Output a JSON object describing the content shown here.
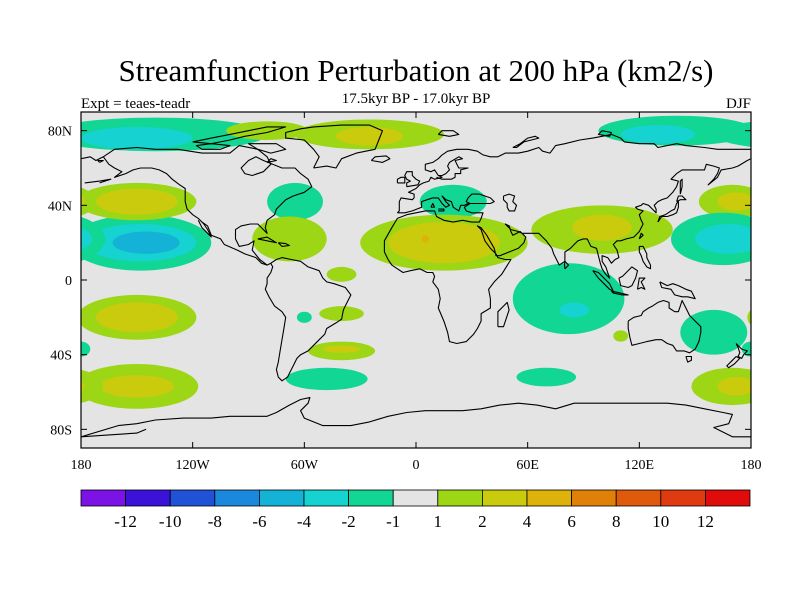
{
  "chart_data": {
    "type": "heatmap",
    "title": "Streamfunction Perturbation at 200 hPa (km2/s)",
    "subtitle": "17.5kyr BP - 17.0kyr BP",
    "left_label": "Expt = teaes-teadr",
    "right_label": "DJF",
    "projection": "cylindrical-equidistant",
    "xlim": [
      -180,
      180
    ],
    "ylim": [
      -90,
      90
    ],
    "x_ticks": [
      {
        "value": -180,
        "label": "180"
      },
      {
        "value": -120,
        "label": "120W"
      },
      {
        "value": -60,
        "label": "60W"
      },
      {
        "value": 0,
        "label": "0"
      },
      {
        "value": 60,
        "label": "60E"
      },
      {
        "value": 120,
        "label": "120E"
      },
      {
        "value": 180,
        "label": "180"
      }
    ],
    "y_ticks": [
      {
        "value": 80,
        "label": "80N"
      },
      {
        "value": 40,
        "label": "40N"
      },
      {
        "value": 0,
        "label": "0"
      },
      {
        "value": -40,
        "label": "40S"
      },
      {
        "value": -80,
        "label": "80S"
      }
    ],
    "colorbar": {
      "labels": [
        "-12",
        "-10",
        "-8",
        "-6",
        "-4",
        "-2",
        "-1",
        "1",
        "2",
        "4",
        "6",
        "8",
        "10",
        "12"
      ],
      "colors": [
        "#7b12e6",
        "#3b12d8",
        "#1f52d6",
        "#1a88dd",
        "#14b2d6",
        "#16d2d0",
        "#12d694",
        "#e4e4e4",
        "#9cd614",
        "#cbcb0e",
        "#ddb20a",
        "#e08008",
        "#e05a0c",
        "#e03a10",
        "#e00c0c"
      ]
    },
    "anomaly_regions": [
      {
        "lon": -150,
        "lat": -20,
        "rlon": 32,
        "rlat": 12,
        "level": 2
      },
      {
        "lon": -150,
        "lat": -20,
        "rlon": 22,
        "rlat": 8,
        "level": 4
      },
      {
        "lon": -150,
        "lat": -57,
        "rlon": 33,
        "rlat": 12,
        "level": 2
      },
      {
        "lon": -150,
        "lat": -57,
        "rlon": 20,
        "rlat": 6,
        "level": 4
      },
      {
        "lon": -180,
        "lat": -37,
        "rlon": 5,
        "rlat": 4,
        "level": -1
      },
      {
        "lon": -148,
        "lat": 20,
        "rlon": 38,
        "rlat": 15,
        "level": -1
      },
      {
        "lon": -148,
        "lat": 20,
        "rlon": 30,
        "rlat": 10,
        "level": -2
      },
      {
        "lon": -145,
        "lat": 20,
        "rlon": 18,
        "rlat": 6,
        "level": -4
      },
      {
        "lon": -150,
        "lat": 42,
        "rlon": 32,
        "rlat": 10,
        "level": 2
      },
      {
        "lon": -150,
        "lat": 42,
        "rlon": 22,
        "rlat": 7,
        "level": 4
      },
      {
        "lon": -140,
        "lat": 78,
        "rlon": 60,
        "rlat": 9,
        "level": -1
      },
      {
        "lon": -150,
        "lat": 76,
        "rlon": 30,
        "rlat": 6,
        "level": -2
      },
      {
        "lon": -65,
        "lat": 42,
        "rlon": 15,
        "rlat": 10,
        "level": -1
      },
      {
        "lon": -68,
        "lat": 22,
        "rlon": 20,
        "rlat": 12,
        "level": 2
      },
      {
        "lon": -25,
        "lat": 78,
        "rlon": 40,
        "rlat": 8,
        "level": 2
      },
      {
        "lon": -25,
        "lat": 77,
        "rlon": 18,
        "rlat": 5,
        "level": 4
      },
      {
        "lon": -80,
        "lat": 80,
        "rlon": 22,
        "rlat": 5,
        "level": 2
      },
      {
        "lon": 20,
        "lat": 42,
        "rlon": 18,
        "rlat": 9,
        "level": -1
      },
      {
        "lon": 15,
        "lat": 20,
        "rlon": 45,
        "rlat": 15,
        "level": 2
      },
      {
        "lon": 15,
        "lat": 20,
        "rlon": 30,
        "rlat": 11,
        "level": 4
      },
      {
        "lon": 5,
        "lat": 22,
        "rlon": 2,
        "rlat": 2,
        "level": 6
      },
      {
        "lon": 100,
        "lat": 27,
        "rlon": 38,
        "rlat": 13,
        "level": 2
      },
      {
        "lon": 100,
        "lat": 28,
        "rlon": 16,
        "rlat": 7,
        "level": 4
      },
      {
        "lon": 140,
        "lat": 80,
        "rlon": 42,
        "rlat": 8,
        "level": -1
      },
      {
        "lon": 130,
        "lat": 78,
        "rlon": 20,
        "rlat": 5,
        "level": -2
      },
      {
        "lon": 170,
        "lat": 42,
        "rlon": 18,
        "rlat": 9,
        "level": 2
      },
      {
        "lon": 172,
        "lat": 42,
        "rlon": 10,
        "rlat": 5,
        "level": 4
      },
      {
        "lon": 165,
        "lat": 22,
        "rlon": 28,
        "rlat": 14,
        "level": -1
      },
      {
        "lon": 168,
        "lat": 22,
        "rlon": 18,
        "rlat": 8,
        "level": -2
      },
      {
        "lon": 82,
        "lat": -10,
        "rlon": 30,
        "rlat": 19,
        "level": -1
      },
      {
        "lon": 85,
        "lat": -16,
        "rlon": 8,
        "rlat": 4,
        "level": -2
      },
      {
        "lon": 160,
        "lat": -28,
        "rlon": 18,
        "rlat": 12,
        "level": -1
      },
      {
        "lon": 170,
        "lat": -57,
        "rlon": 22,
        "rlat": 10,
        "level": 2
      },
      {
        "lon": 172,
        "lat": -57,
        "rlon": 10,
        "rlat": 5,
        "level": 4
      },
      {
        "lon": 110,
        "lat": -30,
        "rlon": 4,
        "rlat": 3,
        "level": 2
      },
      {
        "lon": 70,
        "lat": -52,
        "rlon": 16,
        "rlat": 5,
        "level": -1
      },
      {
        "lon": -40,
        "lat": -18,
        "rlon": 12,
        "rlat": 4,
        "level": 2
      },
      {
        "lon": -60,
        "lat": -20,
        "rlon": 4,
        "rlat": 3,
        "level": -1
      },
      {
        "lon": -40,
        "lat": -38,
        "rlon": 18,
        "rlat": 5,
        "level": 2
      },
      {
        "lon": -40,
        "lat": -37,
        "rlon": 10,
        "rlat": 2,
        "level": 4
      },
      {
        "lon": -48,
        "lat": -53,
        "rlon": 22,
        "rlat": 6,
        "level": -1
      },
      {
        "lon": -40,
        "lat": 3,
        "rlon": 8,
        "rlat": 4,
        "level": 2
      }
    ]
  }
}
